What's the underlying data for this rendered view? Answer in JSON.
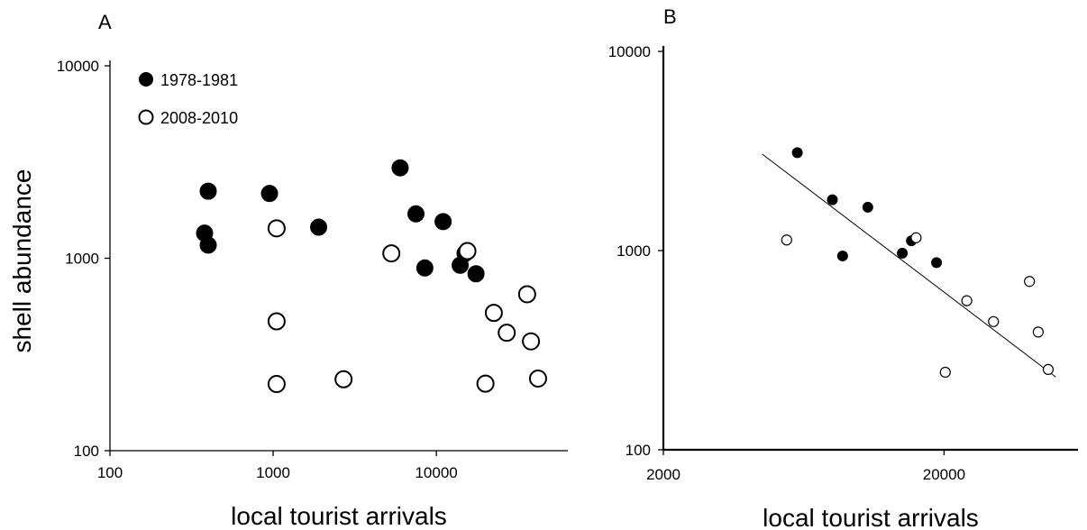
{
  "chart_data": [
    {
      "type": "scatter",
      "panel_label": "A",
      "xlabel": "local tourist arrivals",
      "ylabel": "shell abundance",
      "x_scale": "log",
      "y_scale": "log",
      "xlim": [
        100,
        60000
      ],
      "ylim": [
        100,
        10000
      ],
      "x_ticks": [
        100,
        1000,
        10000
      ],
      "x_tick_labels": [
        "100",
        "1000",
        "10000"
      ],
      "y_ticks": [
        100,
        1000,
        10000
      ],
      "y_tick_labels": [
        "100",
        "1000",
        "10000"
      ],
      "legend_position": "top-left",
      "series": [
        {
          "name": "1978-1981",
          "marker": "filled-circle",
          "color": "#000000",
          "points": [
            [
              380,
              1350
            ],
            [
              400,
              1170
            ],
            [
              400,
              2230
            ],
            [
              950,
              2170
            ],
            [
              1900,
              1450
            ],
            [
              6000,
              2950
            ],
            [
              7500,
              1700
            ],
            [
              8500,
              890
            ],
            [
              11000,
              1550
            ],
            [
              14000,
              920
            ],
            [
              15000,
              1060
            ],
            [
              17500,
              830
            ]
          ]
        },
        {
          "name": "2008-2010",
          "marker": "open-circle",
          "color": "#000000",
          "points": [
            [
              1050,
              1430
            ],
            [
              1050,
              470
            ],
            [
              1050,
              222
            ],
            [
              2700,
              235
            ],
            [
              5300,
              1060
            ],
            [
              15500,
              1090
            ],
            [
              20000,
              223
            ],
            [
              22500,
              520
            ],
            [
              27000,
              410
            ],
            [
              36000,
              650
            ],
            [
              38000,
              370
            ],
            [
              42000,
              237
            ]
          ]
        }
      ]
    },
    {
      "type": "scatter",
      "panel_label": "B",
      "xlabel": "local tourist arrivals",
      "ylabel": "",
      "x_scale": "log",
      "y_scale": "log",
      "xlim": [
        2000,
        60000
      ],
      "ylim": [
        100,
        10000
      ],
      "x_ticks": [
        2000,
        20000
      ],
      "x_tick_labels": [
        "2000",
        "20000"
      ],
      "y_ticks": [
        100,
        1000,
        10000
      ],
      "y_tick_labels": [
        "100",
        "1000",
        "10000"
      ],
      "trend_line": {
        "from": [
          4500,
          3050
        ],
        "to": [
          50000,
          232
        ]
      },
      "series": [
        {
          "name": "",
          "marker": "filled-circle",
          "color": "#000000",
          "points": [
            [
              6000,
              3100
            ],
            [
              8000,
              1800
            ],
            [
              8700,
              940
            ],
            [
              10700,
              1650
            ],
            [
              14200,
              970
            ],
            [
              15300,
              1120
            ],
            [
              18800,
              870
            ]
          ]
        },
        {
          "name": "",
          "marker": "open-circle",
          "color": "#000000",
          "points": [
            [
              5500,
              1130
            ],
            [
              15900,
              1160
            ],
            [
              20200,
              245
            ],
            [
              24100,
              560
            ],
            [
              30000,
              440
            ],
            [
              40300,
              700
            ],
            [
              43300,
              390
            ],
            [
              47000,
              253
            ]
          ]
        }
      ]
    }
  ]
}
